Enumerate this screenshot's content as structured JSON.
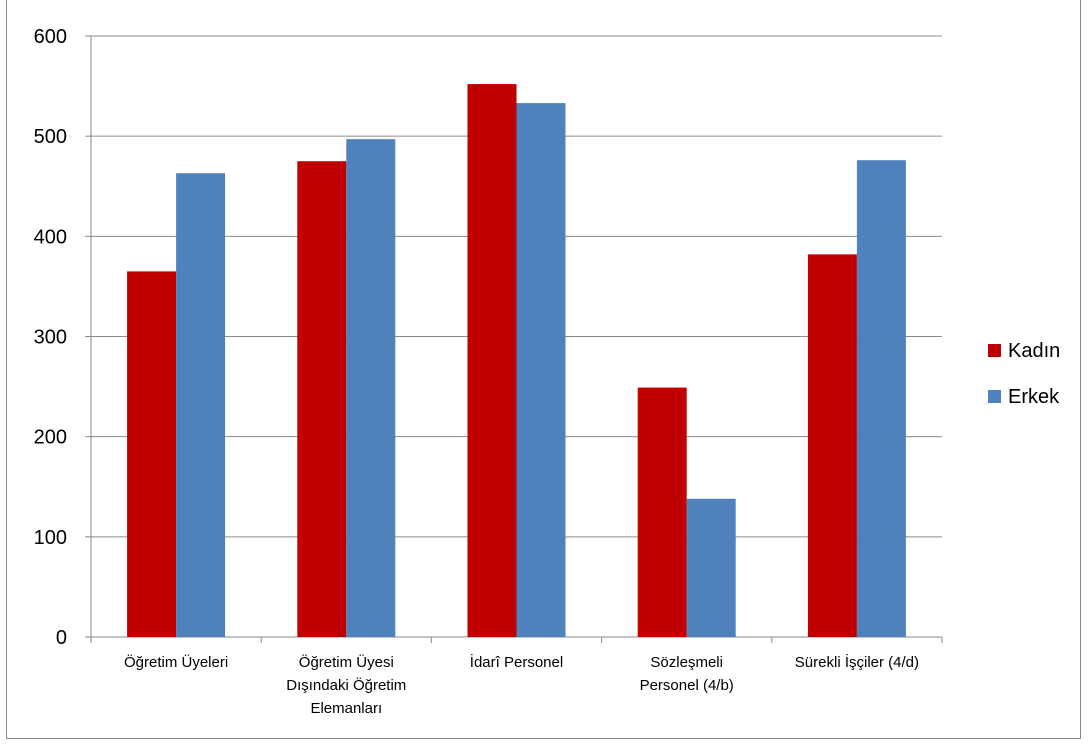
{
  "chart_data": {
    "type": "bar",
    "categories": [
      [
        "Öğretim Üyeleri"
      ],
      [
        "Öğretim Üyesi",
        "Dışındaki Öğretim",
        "Elemanları"
      ],
      [
        "İdarî Personel"
      ],
      [
        "Sözleşmeli",
        "Personel (4/b)"
      ],
      [
        "Sürekli İşçiler (4/d)"
      ]
    ],
    "series": [
      {
        "name": "Kadın",
        "values": [
          365,
          475,
          552,
          249,
          382
        ],
        "color": "#c00000"
      },
      {
        "name": "Erkek",
        "values": [
          463,
          497,
          533,
          138,
          476
        ],
        "color": "#4f81bd"
      }
    ],
    "ylim": [
      0,
      600
    ],
    "yticks": [
      0,
      100,
      200,
      300,
      400,
      500,
      600
    ],
    "grid": true,
    "legend": "right",
    "title": "",
    "xlabel": "",
    "ylabel": ""
  }
}
